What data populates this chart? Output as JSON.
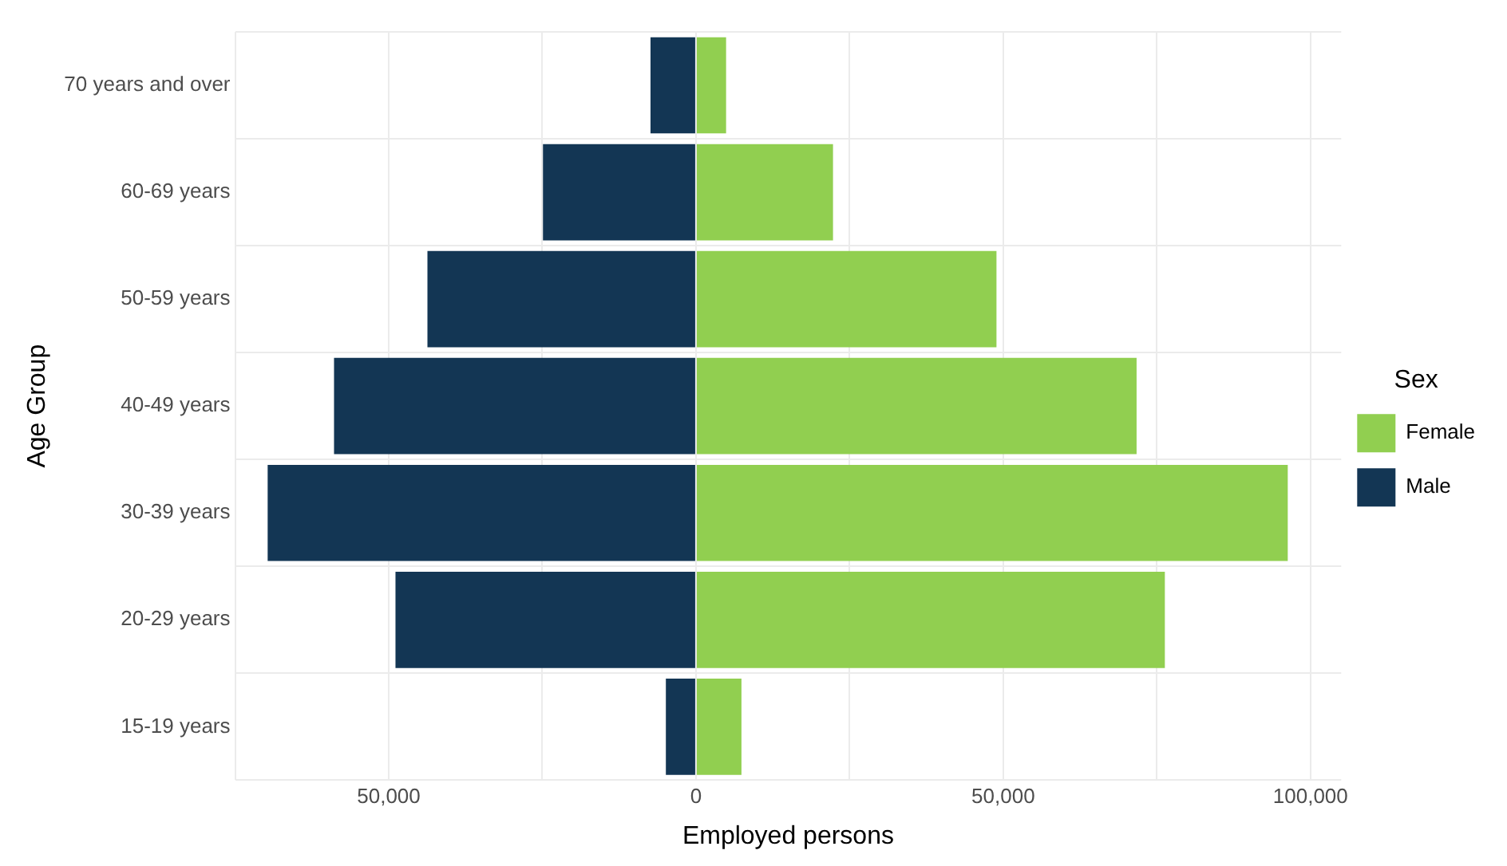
{
  "chart_data": {
    "type": "bar",
    "orientation": "horizontal",
    "stacked": true,
    "xlabel": "Employed persons",
    "ylabel": "Age Group",
    "legend_title": "Sex",
    "legend": "right",
    "grid": true,
    "categories": [
      "70 years and over",
      "60-69 years",
      "50-59 years",
      "40-49 years",
      "30-39 years",
      "20-29 years",
      "15-19 years"
    ],
    "series": [
      {
        "name": "Female",
        "color": "#91cf50",
        "values": [
          4900,
          22300,
          48900,
          71700,
          96300,
          76300,
          7400
        ]
      },
      {
        "name": "Male",
        "color": "#133654",
        "values": [
          -7400,
          -24900,
          -43700,
          -58900,
          -69700,
          -48900,
          -4900
        ]
      }
    ],
    "xlim": [
      -75000,
      105000
    ],
    "xticks": [
      {
        "value": -75000,
        "label": null
      },
      {
        "value": -50000,
        "label": "50,000"
      },
      {
        "value": -25000,
        "label": null
      },
      0,
      {
        "value": 25000,
        "label": null
      },
      {
        "value": 50000,
        "label": "50,000"
      },
      {
        "value": 75000,
        "label": null
      },
      {
        "value": 100000,
        "label": "100,000"
      }
    ]
  }
}
